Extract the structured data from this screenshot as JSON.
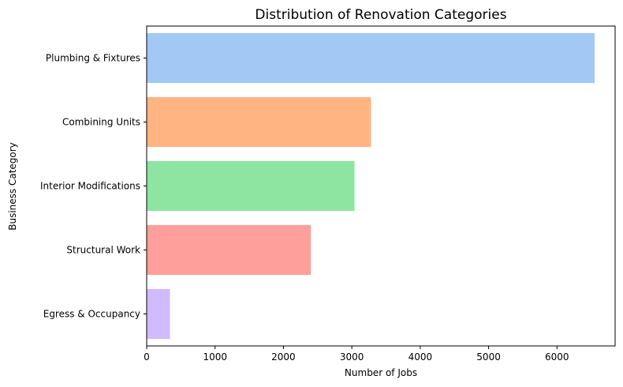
{
  "chart_data": {
    "type": "bar",
    "orientation": "horizontal",
    "title": "Distribution of Renovation Categories",
    "xlabel": "Number of Jobs",
    "ylabel": "Business Category",
    "xlim": [
      0,
      6850
    ],
    "xticks": [
      0,
      1000,
      2000,
      3000,
      4000,
      5000,
      6000
    ],
    "categories": [
      "Plumbing & Fixtures",
      "Combining Units",
      "Interior Modifications",
      "Structural Work",
      "Egress & Occupancy"
    ],
    "values": [
      6550,
      3280,
      3040,
      2400,
      340
    ],
    "colors": [
      "#a1c9f4",
      "#ffb482",
      "#8de5a1",
      "#ff9f9b",
      "#d0bbff"
    ],
    "grid": false,
    "legend": "none"
  }
}
